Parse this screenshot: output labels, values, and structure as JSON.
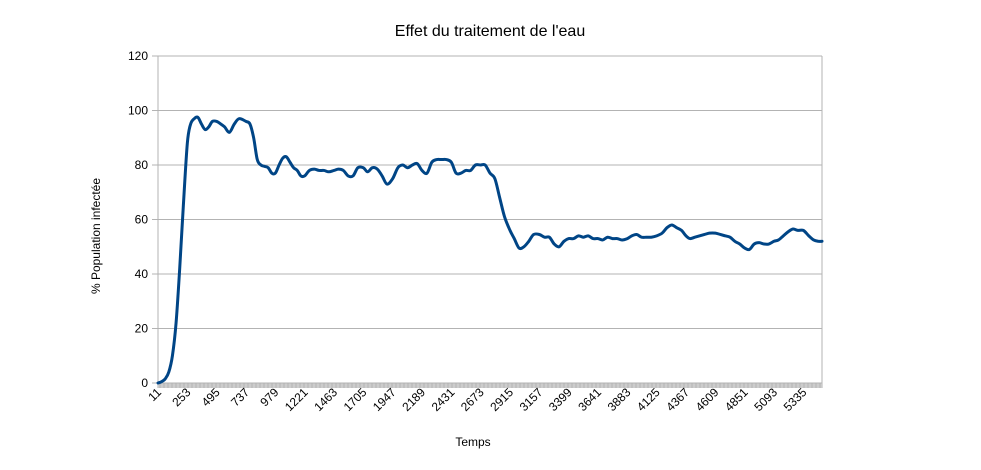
{
  "chart_data": {
    "type": "line",
    "title": "Effet du traitement de l'eau",
    "xlabel": "Temps",
    "ylabel": "% Population infectée",
    "ylim": [
      0,
      120
    ],
    "y_ticks": [
      "0",
      "20",
      "40",
      "60",
      "80",
      "100",
      "120"
    ],
    "x_range": [
      11,
      5489
    ],
    "x_ticks": [
      "11",
      "253",
      "495",
      "737",
      "979",
      "1221",
      "1463",
      "1705",
      "1947",
      "2189",
      "2431",
      "2673",
      "2915",
      "3157",
      "3399",
      "3641",
      "3883",
      "4125",
      "4367",
      "4609",
      "4851",
      "5093",
      "5335"
    ],
    "grid": "horizontal",
    "legend": "none",
    "color": "#004586",
    "series": [
      {
        "x": [
          11,
          40,
          70,
          100,
          130,
          160,
          190,
          220,
          253,
          280,
          310,
          340,
          370,
          400,
          430,
          460,
          495,
          530,
          560,
          600,
          640,
          680,
          737,
          770,
          800,
          830,
          860,
          890,
          920,
          950,
          979,
          1010,
          1040,
          1070,
          1100,
          1130,
          1160,
          1190,
          1221,
          1260,
          1300,
          1340,
          1380,
          1420,
          1463,
          1500,
          1540,
          1580,
          1620,
          1660,
          1705,
          1740,
          1780,
          1820,
          1860,
          1900,
          1947,
          1990,
          2030,
          2070,
          2110,
          2150,
          2189,
          2230,
          2270,
          2310,
          2350,
          2390,
          2431,
          2470,
          2510,
          2550,
          2590,
          2630,
          2673,
          2710,
          2750,
          2790,
          2830,
          2870,
          2915,
          2950,
          2990,
          3030,
          3070,
          3110,
          3157,
          3200,
          3240,
          3280,
          3320,
          3360,
          3399,
          3440,
          3480,
          3520,
          3560,
          3600,
          3641,
          3680,
          3720,
          3760,
          3800,
          3840,
          3883,
          3920,
          3960,
          4000,
          4040,
          4080,
          4125,
          4170,
          4210,
          4250,
          4290,
          4330,
          4367,
          4400,
          4440,
          4480,
          4520,
          4560,
          4609,
          4650,
          4690,
          4730,
          4770,
          4810,
          4851,
          4890,
          4930,
          4970,
          5010,
          5050,
          5093,
          5130,
          5170,
          5210,
          5250,
          5290,
          5335,
          5380,
          5420,
          5460,
          5489
        ],
        "y": [
          0,
          0.5,
          1.5,
          4,
          10,
          22,
          42,
          65,
          88,
          95,
          97,
          97.5,
          95,
          93,
          94,
          96,
          96,
          95,
          94,
          92,
          95,
          97,
          96,
          95,
          90,
          82,
          80,
          79.5,
          79,
          77,
          77,
          80,
          82.5,
          83,
          81,
          79,
          78,
          76,
          76,
          78,
          78.5,
          78,
          78,
          77.5,
          78,
          78.5,
          78,
          76,
          76,
          79,
          79,
          77.5,
          79,
          78.5,
          76,
          73,
          75,
          79,
          80,
          79,
          80,
          80.5,
          78,
          77,
          81,
          82,
          82,
          82,
          81,
          77,
          77,
          78,
          78,
          80,
          80,
          80,
          77,
          75,
          68,
          61,
          56,
          53,
          49.5,
          50,
          52,
          54.5,
          54.5,
          53.5,
          53.5,
          51,
          50,
          52,
          53,
          53,
          54,
          53.5,
          54,
          53,
          53,
          52.5,
          53.5,
          53,
          53,
          52.5,
          53,
          54,
          54.5,
          53.5,
          53.5,
          53.5,
          54,
          55,
          57,
          58,
          57,
          56,
          54,
          53,
          53.5,
          54,
          54.5,
          55,
          55,
          54.5,
          54,
          53.5,
          52,
          51,
          49.5,
          49,
          51,
          51.5,
          51,
          51,
          52,
          52.5,
          54,
          55.5,
          56.5,
          56,
          56,
          54,
          52.5,
          52,
          52
        ]
      }
    ]
  }
}
